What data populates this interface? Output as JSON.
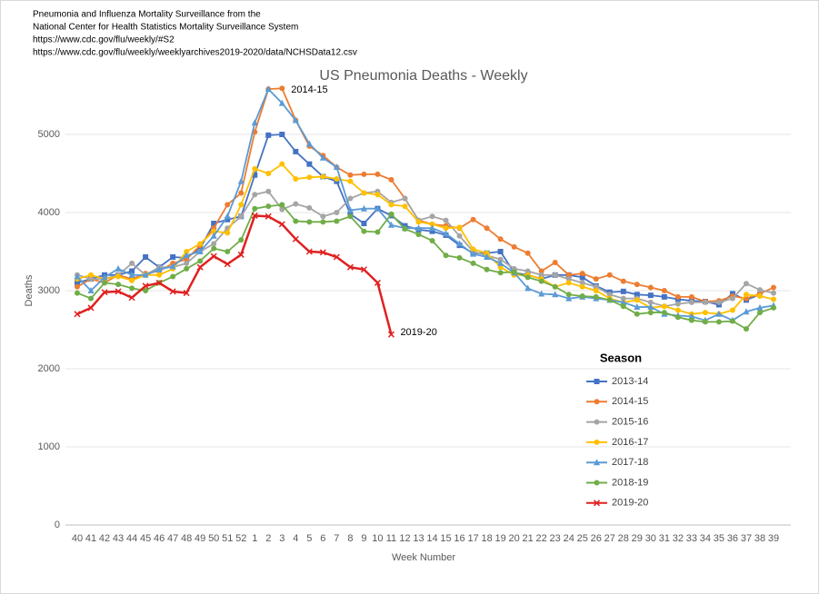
{
  "header": [
    "Pneumonia and Influenza Mortality Surveillance from the",
    "National Center for Health Statistics Mortality Surveillance System",
    "https://www.cdc.gov/flu/weekly/#S2",
    "https://www.cdc.gov/flu/weekly/weeklyarchives2019-2020/data/NCHSData12.csv"
  ],
  "chart_data": {
    "type": "line",
    "title": "US Pneumonia Deaths - Weekly",
    "x_label": "Week Number",
    "y_label": "Deaths",
    "categories": [
      40,
      41,
      42,
      43,
      44,
      45,
      46,
      47,
      48,
      49,
      50,
      51,
      52,
      1,
      2,
      3,
      4,
      5,
      6,
      7,
      8,
      9,
      10,
      11,
      12,
      13,
      14,
      15,
      16,
      17,
      18,
      19,
      20,
      21,
      22,
      23,
      24,
      25,
      26,
      27,
      28,
      29,
      30,
      31,
      32,
      33,
      34,
      35,
      36,
      37,
      38,
      39
    ],
    "ylim": [
      0,
      6000
    ],
    "yticks": [
      0,
      1000,
      2000,
      3000,
      4000,
      5000
    ],
    "grid": true,
    "legend_title": "Season",
    "legend_position": "right",
    "annotations": [
      "2014-15",
      "2019-20"
    ],
    "series": [
      {
        "name": "2013-14",
        "color": "#4472c4",
        "marker": "square",
        "values": [
          3100,
          3150,
          3200,
          3200,
          3250,
          3430,
          3300,
          3430,
          3420,
          3540,
          3860,
          3910,
          3950,
          4480,
          4990,
          5000,
          4780,
          4620,
          4460,
          4400,
          3980,
          3860,
          4050,
          3960,
          3830,
          3780,
          3760,
          3710,
          3580,
          3480,
          3480,
          3500,
          3230,
          3200,
          3150,
          3200,
          3200,
          3170,
          3060,
          2980,
          2990,
          2950,
          2940,
          2920,
          2890,
          2870,
          2860,
          2820,
          2960,
          2880,
          2950,
          null
        ]
      },
      {
        "name": "2014-15",
        "color": "#ed7d31",
        "marker": "circle",
        "values": [
          3050,
          3150,
          3100,
          3200,
          3150,
          3220,
          3250,
          3350,
          3400,
          3580,
          3800,
          4100,
          4250,
          5030,
          5580,
          5590,
          5180,
          4850,
          4730,
          4580,
          4480,
          4490,
          4490,
          4420,
          4180,
          3900,
          3850,
          3830,
          3800,
          3910,
          3800,
          3660,
          3560,
          3480,
          3250,
          3360,
          3200,
          3220,
          3150,
          3200,
          3120,
          3080,
          3040,
          3000,
          2920,
          2920,
          2860,
          2870,
          2930,
          2900,
          2960,
          3040
        ]
      },
      {
        "name": "2015-16",
        "color": "#a5a5a5",
        "marker": "circle",
        "values": [
          3200,
          3150,
          3150,
          3200,
          3350,
          3200,
          3300,
          3300,
          3350,
          3500,
          3600,
          3800,
          3950,
          4230,
          4270,
          4040,
          4110,
          4060,
          3950,
          4000,
          4180,
          4250,
          4270,
          4130,
          4180,
          3900,
          3950,
          3900,
          3700,
          3500,
          3450,
          3400,
          3280,
          3250,
          3200,
          3200,
          3150,
          3100,
          3050,
          2950,
          2900,
          2900,
          2850,
          2800,
          2830,
          2850,
          2850,
          2850,
          2900,
          3090,
          3010,
          2970
        ]
      },
      {
        "name": "2016-17",
        "color": "#ffc000",
        "marker": "circle",
        "values": [
          3150,
          3200,
          3150,
          3180,
          3130,
          3200,
          3200,
          3280,
          3500,
          3600,
          3760,
          3740,
          4100,
          4560,
          4500,
          4620,
          4430,
          4450,
          4460,
          4430,
          4400,
          4250,
          4230,
          4100,
          4080,
          3880,
          3850,
          3800,
          3810,
          3530,
          3480,
          3300,
          3200,
          3200,
          3150,
          3050,
          3100,
          3050,
          3000,
          2900,
          2850,
          2880,
          2780,
          2800,
          2750,
          2700,
          2720,
          2700,
          2750,
          2950,
          2930,
          2890
        ]
      },
      {
        "name": "2017-18",
        "color": "#5b9bd5",
        "marker": "triangle",
        "values": [
          3180,
          3000,
          3170,
          3280,
          3200,
          3200,
          3270,
          3310,
          3450,
          3500,
          3700,
          3950,
          4400,
          5150,
          5580,
          5400,
          5180,
          4880,
          4700,
          4580,
          4030,
          4050,
          4050,
          3840,
          3800,
          3800,
          3800,
          3730,
          3600,
          3470,
          3430,
          3350,
          3230,
          3030,
          2960,
          2950,
          2900,
          2920,
          2900,
          2880,
          2850,
          2790,
          2790,
          2700,
          2680,
          2670,
          2620,
          2700,
          2620,
          2730,
          2780,
          2810
        ]
      },
      {
        "name": "2018-19",
        "color": "#70ad47",
        "marker": "circle",
        "values": [
          2970,
          2900,
          3100,
          3080,
          3030,
          3000,
          3100,
          3180,
          3280,
          3380,
          3540,
          3500,
          3650,
          4050,
          4080,
          4100,
          3890,
          3880,
          3880,
          3890,
          3950,
          3760,
          3750,
          3980,
          3790,
          3720,
          3640,
          3450,
          3420,
          3350,
          3270,
          3230,
          3240,
          3170,
          3120,
          3050,
          2950,
          2930,
          2920,
          2880,
          2800,
          2700,
          2720,
          2720,
          2660,
          2620,
          2600,
          2600,
          2610,
          2510,
          2720,
          2780
        ]
      },
      {
        "name": "2019-20",
        "color": "#e02020",
        "marker": "x",
        "values": [
          2700,
          2780,
          2980,
          2990,
          2910,
          3060,
          3100,
          2990,
          2970,
          3300,
          3440,
          3340,
          3460,
          3960,
          3950,
          3850,
          3660,
          3500,
          3490,
          3430,
          3300,
          3270,
          3100,
          2440,
          null,
          null,
          null,
          null,
          null,
          null,
          null,
          null,
          null,
          null,
          null,
          null,
          null,
          null,
          null,
          null,
          null,
          null,
          null,
          null,
          null,
          null,
          null,
          null,
          null,
          null,
          null,
          null
        ]
      }
    ]
  }
}
